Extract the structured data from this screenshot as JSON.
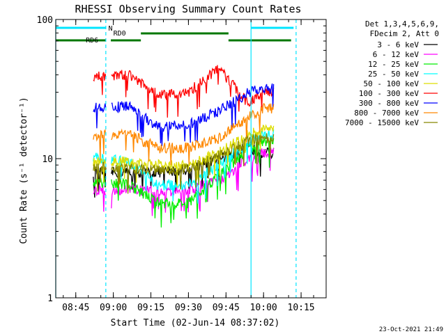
{
  "chart_data": {
    "type": "line",
    "title": "RHESSI Observing Summary Count Rates",
    "xlabel": "Start Time (02-Jun-14 08:37:02)",
    "ylabel": "Count Rate (s⁻¹ detector⁻¹)",
    "y_scale": "log",
    "ylim": [
      1,
      100
    ],
    "y_ticks": [
      "1",
      "10",
      "100"
    ],
    "x_ticks": [
      "08:45",
      "09:00",
      "09:15",
      "09:30",
      "09:45",
      "10:00",
      "10:15"
    ],
    "legend_header": [
      "Det 1,3,4,5,6,9,",
      "FDecim 2, Att 0"
    ],
    "timestamp": "23-Oct-2021 21:49",
    "flags": [
      {
        "label": "N",
        "color": "#00e5ff",
        "segments": [
          [
            "08:37",
            "08:57"
          ],
          [
            "09:55",
            "10:12"
          ]
        ]
      },
      {
        "label": "RD0",
        "color": "#007700",
        "segments": [
          [
            "09:11",
            "09:46"
          ]
        ]
      },
      {
        "label": "RD6",
        "color": "#007700",
        "segments": [
          [
            "08:37",
            "08:57"
          ],
          [
            "08:59",
            "09:11"
          ],
          [
            "09:46",
            "10:11"
          ]
        ]
      }
    ],
    "vlines": [
      {
        "time": "08:37",
        "style": "solid"
      },
      {
        "time": "08:57",
        "style": "dashed"
      },
      {
        "time": "09:55",
        "style": "solid"
      },
      {
        "time": "10:13",
        "style": "dashed"
      }
    ],
    "series": [
      {
        "name": "3 - 6 keV",
        "color": "#000000",
        "values": [
          [
            8.7,
            8.0
          ],
          [
            8.8,
            8.0
          ],
          [
            9.1,
            8.0
          ],
          [
            9.3,
            8.0
          ],
          [
            9.5,
            8.4
          ],
          [
            9.7,
            10.0
          ],
          [
            9.9,
            12.0
          ],
          [
            10.0,
            11.0
          ]
        ]
      },
      {
        "name": "6 - 12 keV",
        "color": "#ff00ff",
        "values": [
          [
            8.7,
            5.5
          ],
          [
            8.8,
            6.0
          ],
          [
            9.1,
            6.0
          ],
          [
            9.3,
            5.8
          ],
          [
            9.5,
            6.0
          ],
          [
            9.7,
            7.0
          ],
          [
            9.9,
            10.0
          ],
          [
            10.0,
            11.0
          ]
        ]
      },
      {
        "name": "12 - 25 keV",
        "color": "#00ee00",
        "values": [
          [
            8.7,
            7.0
          ],
          [
            8.8,
            7.0
          ],
          [
            9.1,
            6.5
          ],
          [
            9.3,
            4.8
          ],
          [
            9.5,
            4.8
          ],
          [
            9.7,
            7.5
          ],
          [
            9.9,
            12.0
          ],
          [
            10.0,
            13.0
          ]
        ]
      },
      {
        "name": "25 - 50 keV",
        "color": "#00ffff",
        "values": [
          [
            8.7,
            10.0
          ],
          [
            8.8,
            10.5
          ],
          [
            9.1,
            9.5
          ],
          [
            9.3,
            6.5
          ],
          [
            9.5,
            6.5
          ],
          [
            9.7,
            9.0
          ],
          [
            9.9,
            13.0
          ],
          [
            10.0,
            15.0
          ]
        ]
      },
      {
        "name": "50 - 100 keV",
        "color": "#dddd00",
        "values": [
          [
            8.7,
            9.0
          ],
          [
            8.8,
            9.5
          ],
          [
            9.1,
            9.5
          ],
          [
            9.3,
            9.0
          ],
          [
            9.5,
            9.0
          ],
          [
            9.7,
            11.0
          ],
          [
            9.9,
            15.0
          ],
          [
            10.0,
            16.0
          ]
        ]
      },
      {
        "name": "100 - 300 keV",
        "color": "#ff0000",
        "values": [
          [
            8.7,
            37.0
          ],
          [
            8.8,
            39.0
          ],
          [
            9.1,
            40.0
          ],
          [
            9.3,
            29.0
          ],
          [
            9.5,
            30.0
          ],
          [
            9.7,
            45.0
          ],
          [
            9.9,
            25.0
          ],
          [
            10.0,
            30.0
          ]
        ]
      },
      {
        "name": "300 - 800 keV",
        "color": "#0000ff",
        "values": [
          [
            8.7,
            21.0
          ],
          [
            8.8,
            23.0
          ],
          [
            9.1,
            24.0
          ],
          [
            9.3,
            17.0
          ],
          [
            9.5,
            17.5
          ],
          [
            9.7,
            22.0
          ],
          [
            9.9,
            30.0
          ],
          [
            10.0,
            32.0
          ]
        ]
      },
      {
        "name": "800 - 7000 keV",
        "color": "#ff8800",
        "values": [
          [
            8.7,
            13.0
          ],
          [
            8.8,
            14.5
          ],
          [
            9.1,
            15.0
          ],
          [
            9.3,
            12.0
          ],
          [
            9.5,
            12.0
          ],
          [
            9.7,
            14.0
          ],
          [
            9.9,
            20.0
          ],
          [
            10.0,
            23.0
          ]
        ]
      },
      {
        "name": "7000 - 15000 keV",
        "color": "#888800",
        "values": [
          [
            8.7,
            8.5
          ],
          [
            8.8,
            8.8
          ],
          [
            9.1,
            8.5
          ],
          [
            9.3,
            8.3
          ],
          [
            9.5,
            8.4
          ],
          [
            9.7,
            10.5
          ],
          [
            9.9,
            13.5
          ],
          [
            10.0,
            14.0
          ]
        ]
      }
    ]
  }
}
